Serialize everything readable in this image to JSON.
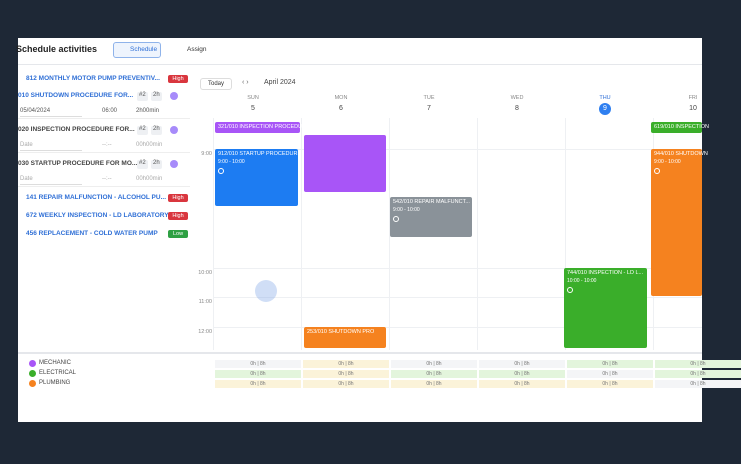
{
  "header": {
    "title": "Schedule activities",
    "tabs": [
      "Schedule",
      "Assign"
    ]
  },
  "tasks": [
    {
      "title": "812 MONTHLY MOTOR PUMP PREVENTIV...",
      "priority": "High"
    },
    {
      "title": "010 SHUTDOWN PROCEDURE FOR...",
      "count": "#2",
      "duration": "2h",
      "date": "05/04/2024",
      "time": "06:00",
      "length": "2h00min"
    },
    {
      "title": "020 INSPECTION PROCEDURE FOR...",
      "count": "#2",
      "duration": "2h",
      "date": "Date",
      "time": "--:--",
      "length": "00h00min"
    },
    {
      "title": "030 STARTUP PROCEDURE FOR MO...",
      "count": "#2",
      "duration": "2h",
      "date": "Date",
      "time": "--:--",
      "length": "00h00min"
    },
    {
      "title": "141 REPAIR MALFUNCTION - ALCOHOL PU...",
      "priority": "High"
    },
    {
      "title": "672 WEEKLY INSPECTION - LD LABORATORY",
      "priority": "High"
    },
    {
      "title": "456 REPLACEMENT - COLD WATER PUMP",
      "priority": "Low"
    }
  ],
  "calendar": {
    "today": "Today",
    "month": "April 2024",
    "days": [
      {
        "name": "SUN",
        "date": "5"
      },
      {
        "name": "MON",
        "date": "6"
      },
      {
        "name": "TUE",
        "date": "7"
      },
      {
        "name": "WED",
        "date": "8"
      },
      {
        "name": "THU",
        "date": "9"
      },
      {
        "name": "FRI",
        "date": "10"
      }
    ],
    "times": [
      "9:00",
      "10:00",
      "11:00",
      "12:00"
    ],
    "events": [
      {
        "title": "321/010 INSPECTION PROCEDURE",
        "color": "#a855f7"
      },
      {
        "title": "912/010 STARTUP PROCEDURE",
        "time": "9:00 - 10:00",
        "color": "#1d7cf2"
      },
      {
        "color": "#a855f7"
      },
      {
        "title": "542/010 REPAIR MALFUNCT...",
        "time": "9:00 - 10:00",
        "color": "#8a9299"
      },
      {
        "title": "744/010 INSPECTION - LD L...",
        "time": "10:00 - 10:00",
        "color": "#3aae2a"
      },
      {
        "title": "253/010 SHUTDOWN PRO",
        "color": "#f5821f"
      },
      {
        "title": "619/010 INSPECTION",
        "color": "#3aae2a"
      },
      {
        "title": "944/010 SHUTDOWN",
        "time": "9:00 - 10:00",
        "color": "#f5821f"
      }
    ]
  },
  "resources": [
    {
      "name": "MECHANIC",
      "color": "#a855f7",
      "cells": [
        "0h | 8h",
        "0h | 8h",
        "0h | 8h",
        "0h | 8h",
        "0h | 8h",
        "0h | 8h"
      ]
    },
    {
      "name": "ELECTRICAL",
      "color": "#3aae2a",
      "cells": [
        "0h | 8h",
        "0h | 8h",
        "0h | 8h",
        "0h | 8h",
        "0h | 8h",
        "0h | 8h"
      ]
    },
    {
      "name": "PLUMBING",
      "color": "#f5821f",
      "cells": [
        "0h | 8h",
        "0h | 8h",
        "0h | 8h",
        "0h | 8h",
        "0h | 8h",
        "0h | 8h"
      ]
    }
  ]
}
